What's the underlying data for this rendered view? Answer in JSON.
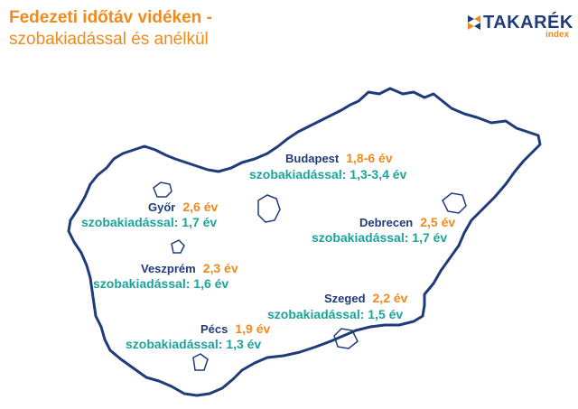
{
  "title": {
    "line1": "Fedezeti időtáv vidéken -",
    "line2": "szobakiadással és anélkül"
  },
  "logo": {
    "brand": "TAKARÉK",
    "sub": "index"
  },
  "colors": {
    "outline": "#1f3b7a",
    "city_name": "#1f3b7a",
    "years": "#f08a1c",
    "rental": "#1aa39a",
    "title": "#f08a1c"
  },
  "cities": {
    "budapest": {
      "name": "Budapest",
      "years": "1,8-6 év",
      "rental_label": "szobakiadással:",
      "rental_years": "1,3-3,4 év"
    },
    "gyor": {
      "name": "Győr",
      "years": "2,6 év",
      "rental_label": "szobakiadással:",
      "rental_years": "1,7 év"
    },
    "debrecen": {
      "name": "Debrecen",
      "years": "2,5 év",
      "rental_label": "szobakiadással:",
      "rental_years": "1,7 év"
    },
    "veszprem": {
      "name": "Veszprém",
      "years": "2,3 év",
      "rental_label": "szobakiadással:",
      "rental_years": "1,6 év"
    },
    "szeged": {
      "name": "Szeged",
      "years": "2,2 év",
      "rental_label": "szobakiadással:",
      "rental_years": "1,5 év"
    },
    "pecs": {
      "name": "Pécs",
      "years": "1,9 év",
      "rental_label": "szobakiadással:",
      "rental_years": "1,3 év"
    }
  }
}
